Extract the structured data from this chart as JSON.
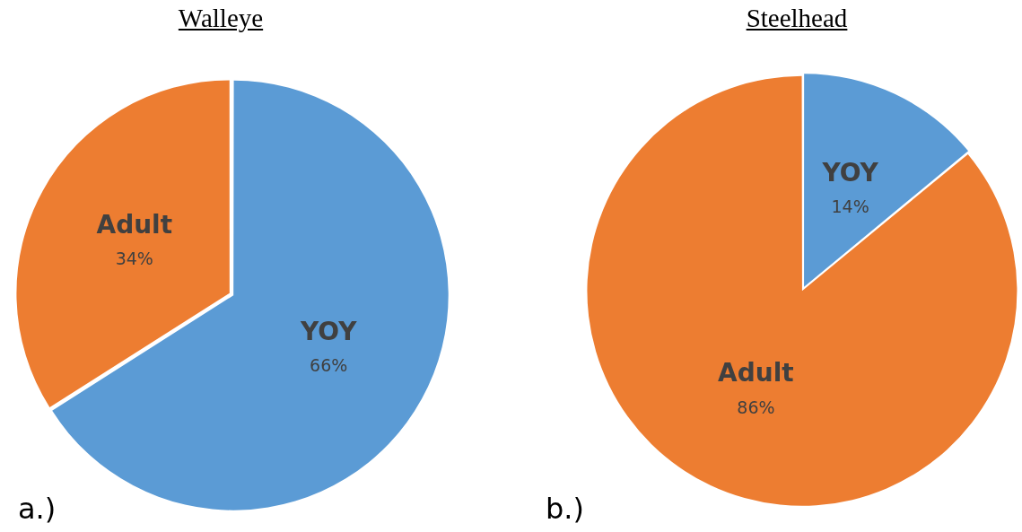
{
  "chart_data": [
    {
      "type": "pie",
      "title": "Walleye",
      "categories": [
        "YOY",
        "Adult"
      ],
      "values": [
        66,
        34
      ],
      "colors": [
        "#5b9bd5",
        "#ed7d31"
      ],
      "value_labels": [
        "66%",
        "34%"
      ],
      "annotations": [
        "a.)"
      ]
    },
    {
      "type": "pie",
      "title": "Steelhead",
      "categories": [
        "YOY",
        "Adult"
      ],
      "values": [
        14,
        86
      ],
      "colors": [
        "#5b9bd5",
        "#ed7d31"
      ],
      "value_labels": [
        "14%",
        "86%"
      ],
      "annotations": [
        "b.)"
      ]
    }
  ]
}
